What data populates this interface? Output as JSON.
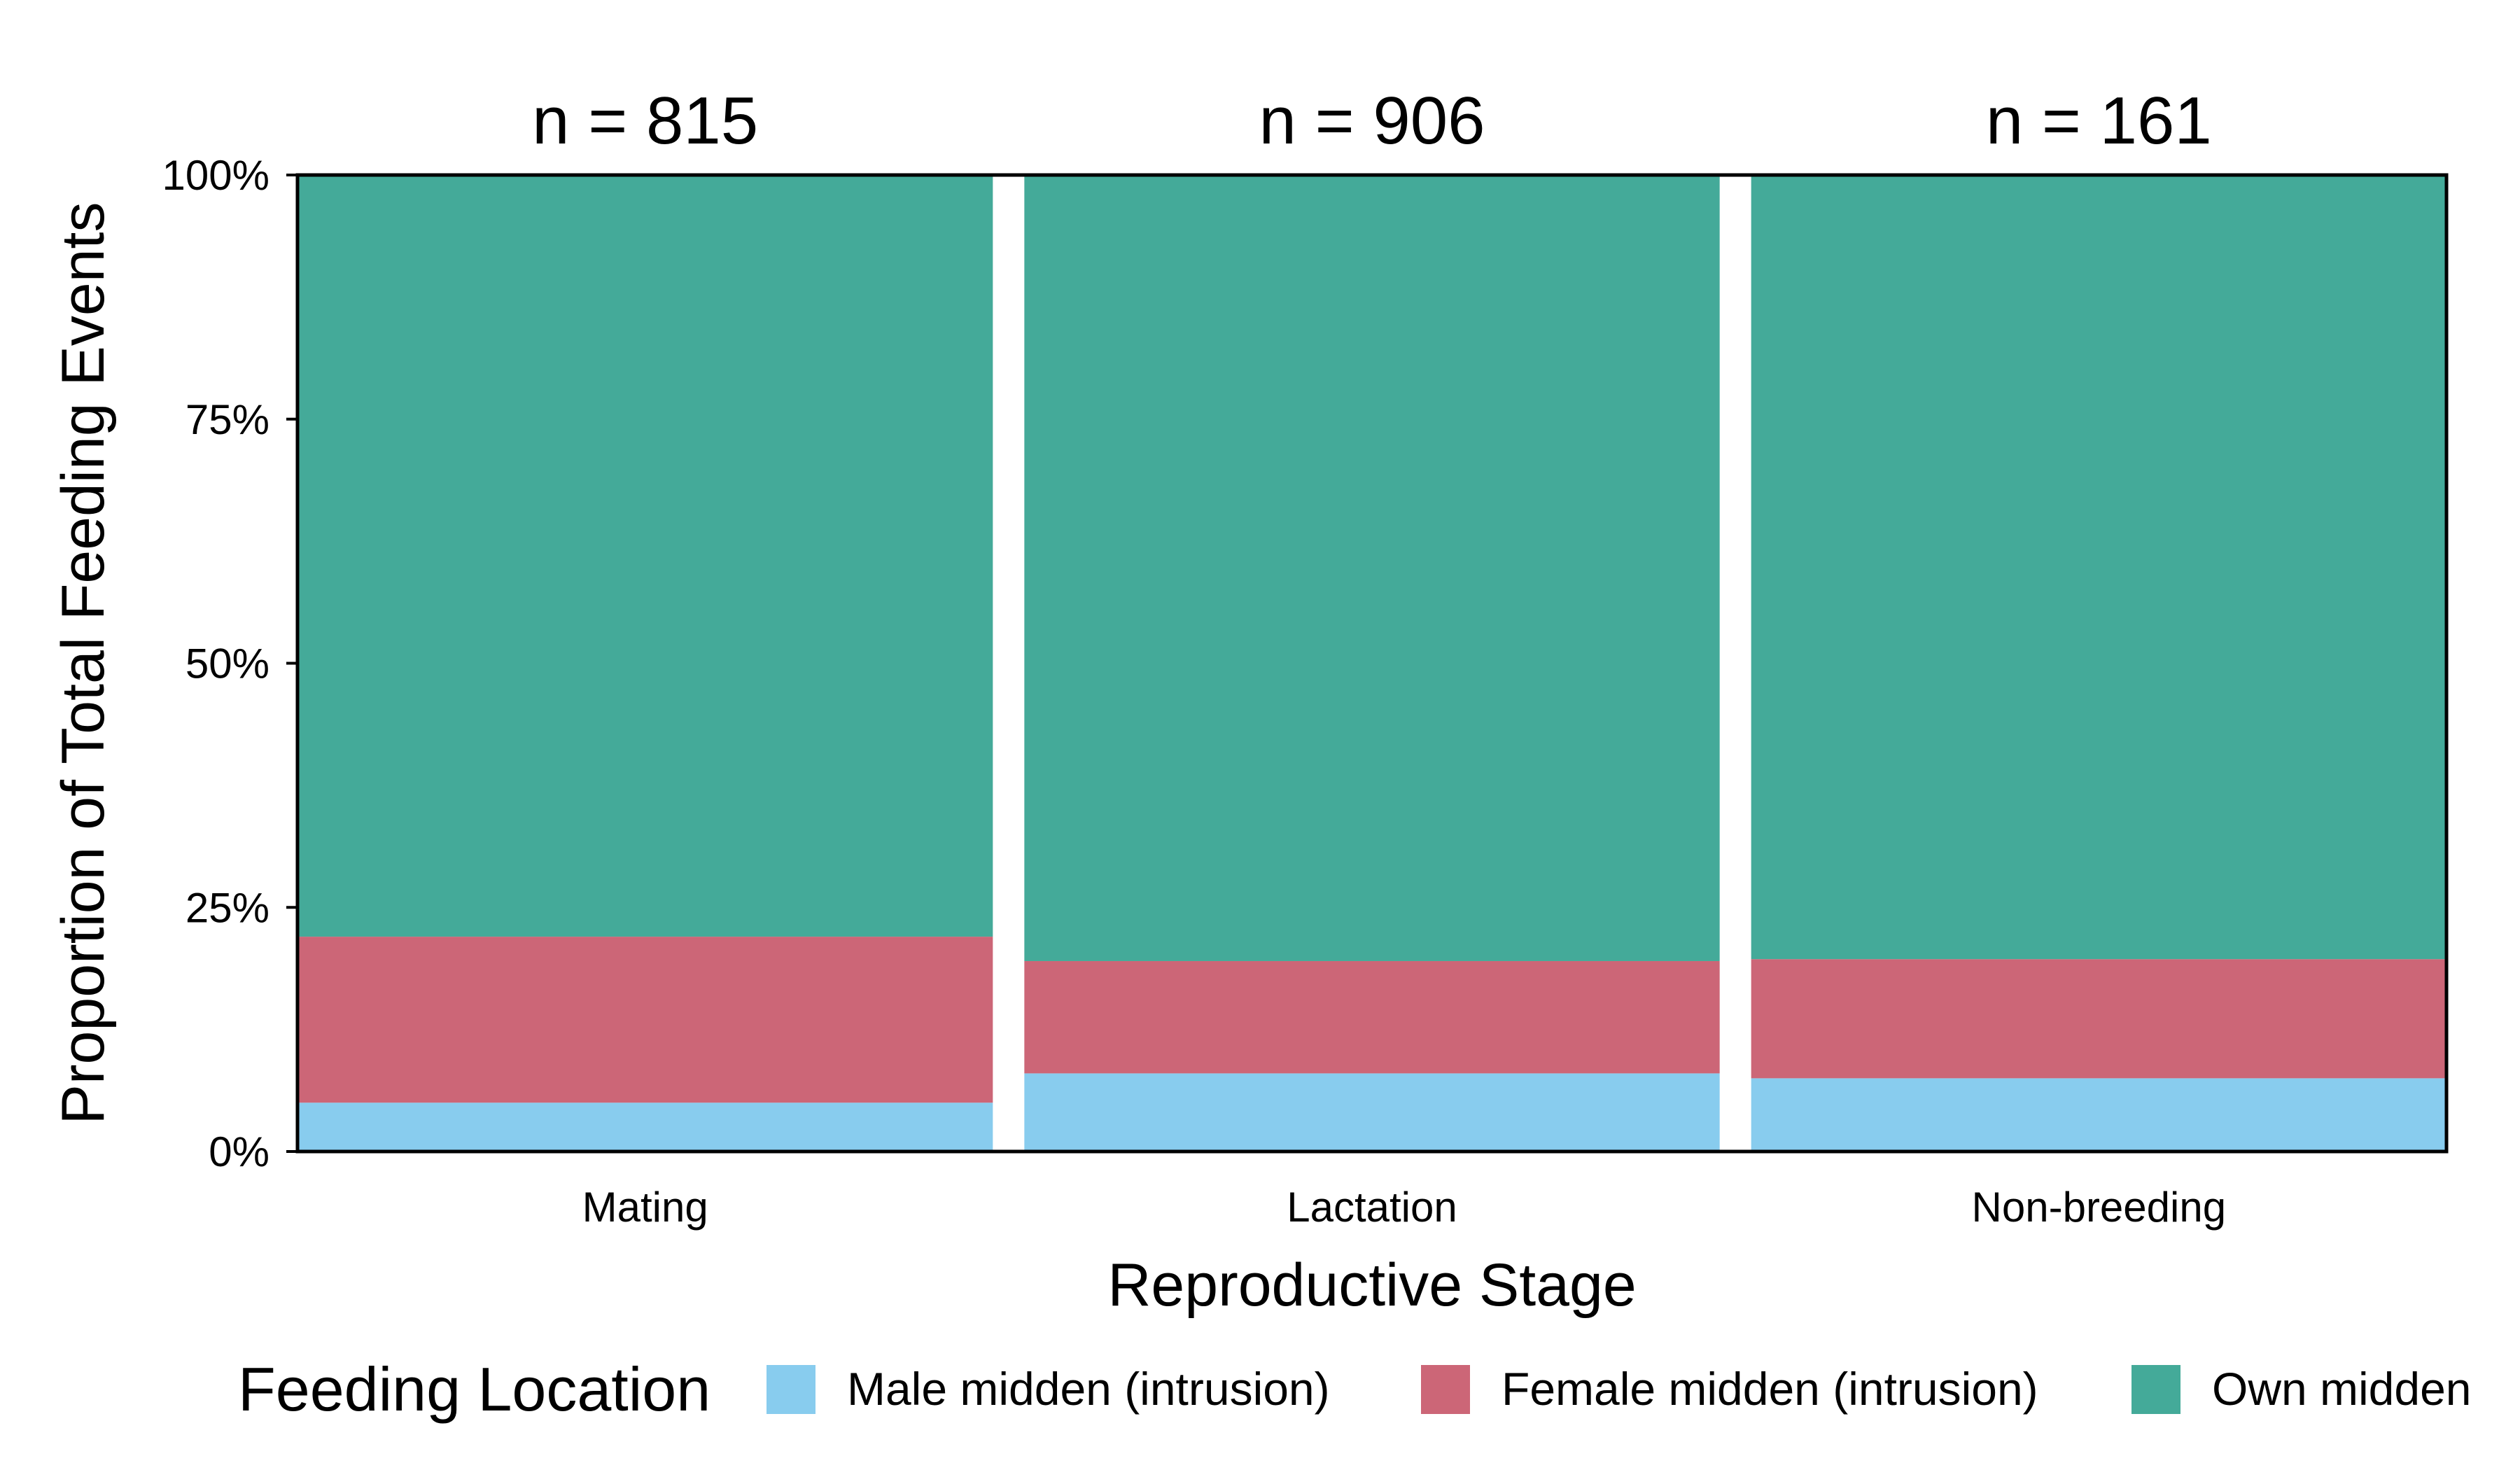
{
  "chart_data": {
    "type": "bar",
    "stacked": true,
    "normalized": true,
    "categories": [
      "Mating",
      "Lactation",
      "Non-breeding"
    ],
    "sample_sizes": [
      "n = 815",
      "n = 906",
      "n = 161"
    ],
    "series": [
      {
        "name": "Male midden (intrusion)",
        "color": "#88CCEE",
        "values": [
          0.05,
          0.08,
          0.075
        ]
      },
      {
        "name": "Female midden (intrusion)",
        "color": "#CC6677",
        "values": [
          0.17,
          0.115,
          0.122
        ]
      },
      {
        "name": "Own midden",
        "color": "#44AA99",
        "values": [
          0.78,
          0.805,
          0.803
        ]
      }
    ],
    "xlabel": "Reproductive Stage",
    "ylabel": "Proportion of Total Feeding Events",
    "yticks": [
      "0%",
      "25%",
      "50%",
      "75%",
      "100%"
    ],
    "ylim": [
      0,
      1
    ],
    "legend_title": "Feeding Location",
    "legend_position": "bottom",
    "grid": false
  }
}
